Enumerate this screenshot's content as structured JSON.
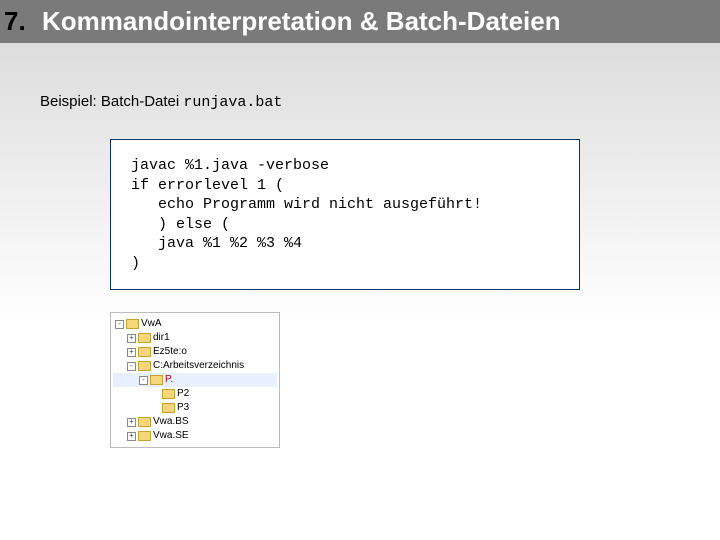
{
  "header": {
    "number": "7.",
    "title": "Kommandointerpretation & Batch-Dateien"
  },
  "example": {
    "prefix": "Beispiel:  Batch-Datei ",
    "filename": "runjava.bat"
  },
  "code": "javac %1.java -verbose\nif errorlevel 1 (\n   echo Programm wird nicht ausgeführt!\n   ) else (\n   java %1 %2 %3 %4\n)",
  "tree": {
    "items": [
      {
        "level": 0,
        "expander": "-",
        "label": "VwA",
        "selected": false
      },
      {
        "level": 1,
        "expander": "+",
        "label": "dir1",
        "selected": false
      },
      {
        "level": 1,
        "expander": "+",
        "label": "Ez5te:o",
        "selected": false
      },
      {
        "level": 1,
        "expander": "-",
        "label": "C:Arbeitsverzeichnis",
        "selected": false
      },
      {
        "level": 2,
        "expander": "-",
        "label": "P.",
        "selected": true
      },
      {
        "level": 3,
        "expander": "",
        "label": "P2",
        "selected": false
      },
      {
        "level": 3,
        "expander": "",
        "label": "P3",
        "selected": false
      },
      {
        "level": 1,
        "expander": "+",
        "label": "Vwa.BS",
        "selected": false
      },
      {
        "level": 1,
        "expander": "+",
        "label": "Vwa.SE",
        "selected": false
      }
    ]
  }
}
